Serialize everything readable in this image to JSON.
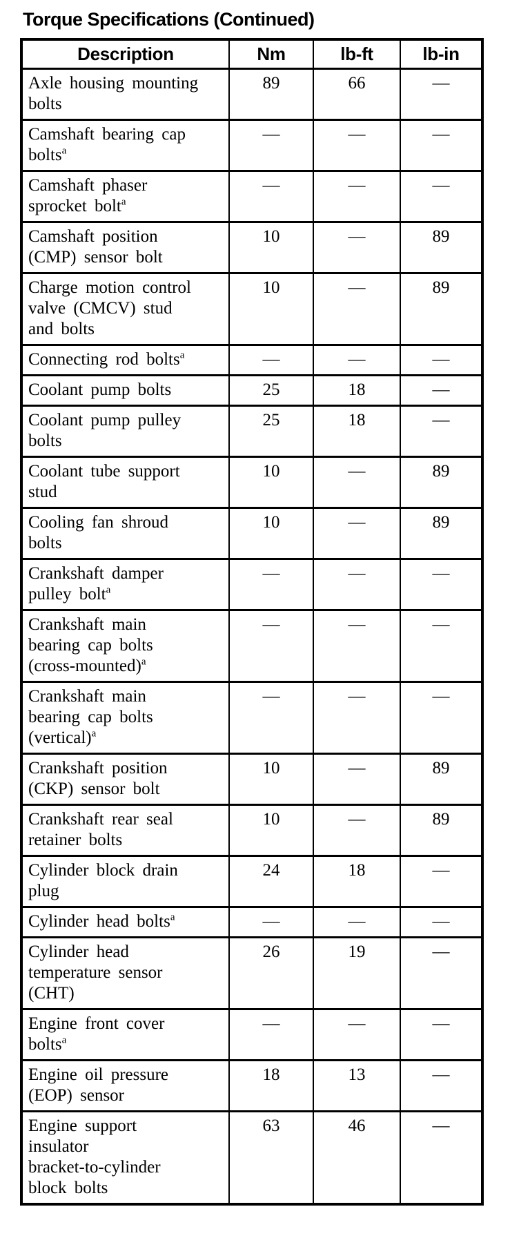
{
  "page": {
    "title": "Torque Specifications (Continued)"
  },
  "colors": {
    "text": "#000000",
    "background": "#ffffff",
    "table_border": "#000000"
  },
  "table": {
    "columns": [
      "Description",
      "Nm",
      "lb-ft",
      "lb-in"
    ],
    "empty_value_symbol": "—",
    "footnote_marker": "a",
    "rows": [
      {
        "description": "Axle housing mounting\nbolts",
        "nm": "89",
        "lb_ft": "66",
        "lb_in": "—"
      },
      {
        "description": "Camshaft bearing cap\nboltsᵃ",
        "nm": "—",
        "lb_ft": "—",
        "lb_in": "—"
      },
      {
        "description": "Camshaft phaser\nsprocket boltᵃ",
        "nm": "—",
        "lb_ft": "—",
        "lb_in": "—"
      },
      {
        "description": "Camshaft position\n(CMP) sensor bolt",
        "nm": "10",
        "lb_ft": "—",
        "lb_in": "89"
      },
      {
        "description": "Charge motion control\nvalve (CMCV) stud\nand bolts",
        "nm": "10",
        "lb_ft": "—",
        "lb_in": "89"
      },
      {
        "description": "Connecting rod boltsᵃ",
        "nm": "—",
        "lb_ft": "—",
        "lb_in": "—"
      },
      {
        "description": "Coolant pump bolts",
        "nm": "25",
        "lb_ft": "18",
        "lb_in": "—"
      },
      {
        "description": "Coolant pump pulley\nbolts",
        "nm": "25",
        "lb_ft": "18",
        "lb_in": "—"
      },
      {
        "description": "Coolant tube support\nstud",
        "nm": "10",
        "lb_ft": "—",
        "lb_in": "89"
      },
      {
        "description": "Cooling fan shroud\nbolts",
        "nm": "10",
        "lb_ft": "—",
        "lb_in": "89"
      },
      {
        "description": "Crankshaft damper\npulley boltᵃ",
        "nm": "—",
        "lb_ft": "—",
        "lb_in": "—"
      },
      {
        "description": "Crankshaft main\nbearing cap bolts\n(cross-mounted)ᵃ",
        "nm": "—",
        "lb_ft": "—",
        "lb_in": "—"
      },
      {
        "description": "Crankshaft main\nbearing cap bolts\n(vertical)ᵃ",
        "nm": "—",
        "lb_ft": "—",
        "lb_in": "—"
      },
      {
        "description": "Crankshaft position\n(CKP) sensor bolt",
        "nm": "10",
        "lb_ft": "—",
        "lb_in": "89"
      },
      {
        "description": "Crankshaft rear seal\nretainer bolts",
        "nm": "10",
        "lb_ft": "—",
        "lb_in": "89"
      },
      {
        "description": "Cylinder block drain\nplug",
        "nm": "24",
        "lb_ft": "18",
        "lb_in": "—"
      },
      {
        "description": "Cylinder head boltsᵃ",
        "nm": "—",
        "lb_ft": "—",
        "lb_in": "—"
      },
      {
        "description": "Cylinder head\ntemperature sensor\n(CHT)",
        "nm": "26",
        "lb_ft": "19",
        "lb_in": "—"
      },
      {
        "description": "Engine front cover\nboltsᵃ",
        "nm": "—",
        "lb_ft": "—",
        "lb_in": "—"
      },
      {
        "description": "Engine oil pressure\n(EOP) sensor",
        "nm": "18",
        "lb_ft": "13",
        "lb_in": "—"
      },
      {
        "description": "Engine support\ninsulator\nbracket-to-cylinder\nblock bolts",
        "nm": "63",
        "lb_ft": "46",
        "lb_in": "—"
      }
    ]
  }
}
